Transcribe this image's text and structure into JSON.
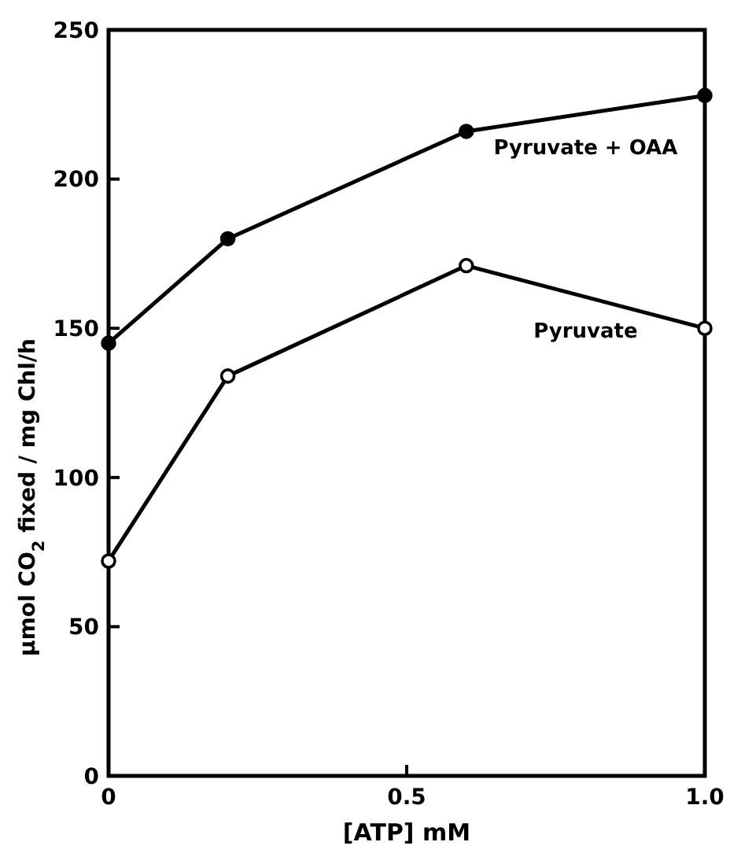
{
  "chart_data": {
    "type": "line",
    "xlabel": "[ATP] mM",
    "ylabel": "μmol CO$_{2}$ fixed / mg Chl/h",
    "x": [
      0,
      0.2,
      0.6,
      1.0
    ],
    "series": [
      {
        "name": "Pyruvate + OAA",
        "color": "#000000",
        "values": [
          145,
          180,
          216,
          228
        ]
      },
      {
        "name": "Pyruvate",
        "color": "#000000",
        "values": [
          72,
          134,
          171,
          150
        ],
        "colors": [
          "#ffffff",
          "#ffffff",
          "#ffffff",
          "#ffffff"
        ]
      }
    ],
    "xlim": [
      0,
      1.0
    ],
    "xticks": [
      0,
      0.5,
      {
        "value": 1.0,
        "label": "1.0"
      }
    ],
    "ylim": [
      0,
      250
    ],
    "yticks": [
      0,
      50,
      100,
      150,
      200,
      250
    ],
    "marker": "circle",
    "line_style": "solid",
    "grid": false
  }
}
